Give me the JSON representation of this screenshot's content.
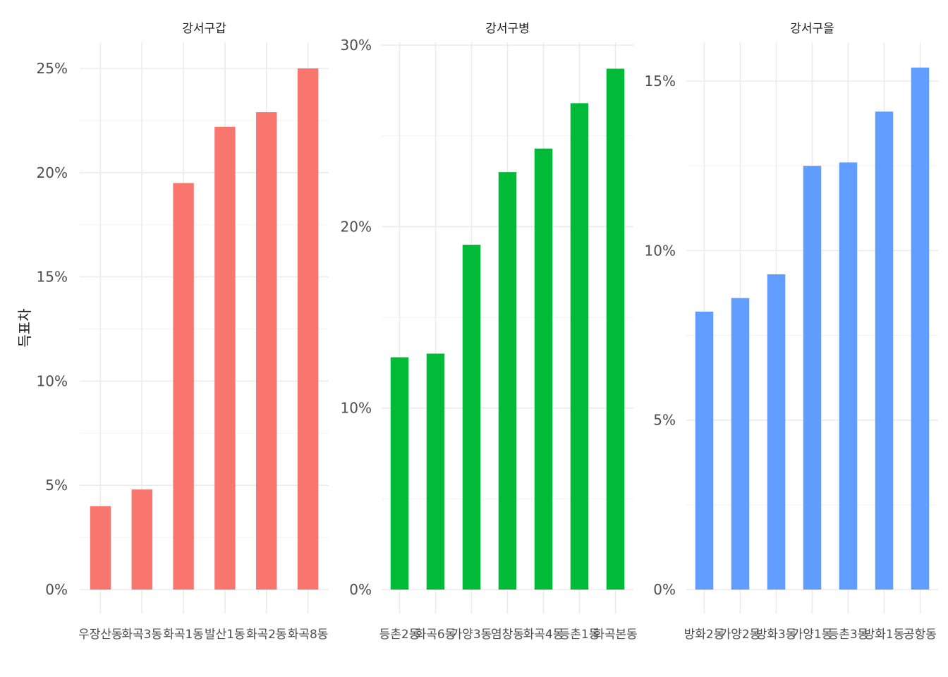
{
  "ylabel": "득표차",
  "chart_data": [
    {
      "type": "bar",
      "title": "강서구갑",
      "color": "#F8766D",
      "ylabel": "득표차",
      "ylim": [
        0,
        0.25
      ],
      "yticks": [
        "0%",
        "5%",
        "10%",
        "15%",
        "20%",
        "25%"
      ],
      "categories": [
        "우장산동",
        "화곡3동",
        "화곡1동",
        "발산1동",
        "화곡2동",
        "화곡8동"
      ],
      "values": [
        0.04,
        0.048,
        0.195,
        0.222,
        0.229,
        0.25
      ]
    },
    {
      "type": "bar",
      "title": "강서구병",
      "color": "#00BA38",
      "ylim": [
        0,
        0.3
      ],
      "yticks": [
        "0%",
        "10%",
        "20%",
        "30%"
      ],
      "categories": [
        "등촌2동",
        "화곡6동",
        "가양3동",
        "염창동",
        "화곡4동",
        "등촌1동",
        "화곡본동"
      ],
      "values": [
        0.128,
        0.13,
        0.19,
        0.23,
        0.243,
        0.268,
        0.287
      ]
    },
    {
      "type": "bar",
      "title": "강서구을",
      "color": "#619CFF",
      "ylim": [
        0,
        0.15
      ],
      "yticks": [
        "0%",
        "5%",
        "10%",
        "15%"
      ],
      "categories": [
        "방화2동",
        "가양2동",
        "방화3동",
        "가양1동",
        "등촌3동",
        "방화1동",
        "공항동"
      ],
      "values": [
        0.082,
        0.086,
        0.093,
        0.125,
        0.126,
        0.141,
        0.154
      ]
    }
  ]
}
